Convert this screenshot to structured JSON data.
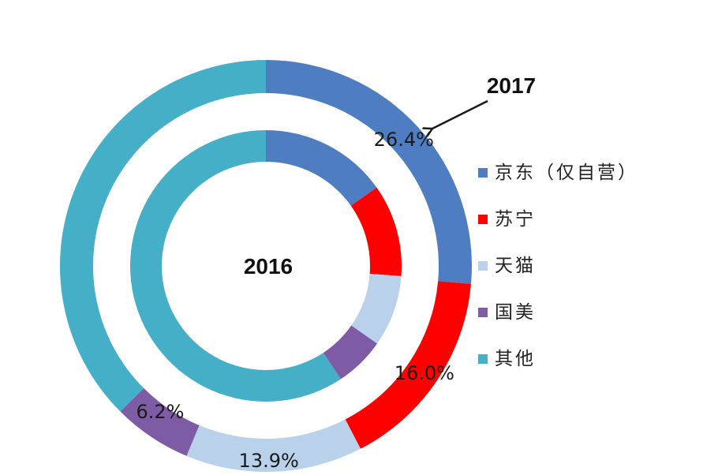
{
  "chart_data": {
    "type": "donut",
    "categories": [
      "京东（仅自营）",
      "苏宁",
      "天猫",
      "国美",
      "其他"
    ],
    "colors": [
      "#4E7EC1",
      "#FF0000",
      "#B9D1EA",
      "#7E5BA5",
      "#46AFC8"
    ],
    "series": [
      {
        "name": "2016",
        "values": [
          15.2,
          11.0,
          8.5,
          6.0,
          59.3
        ]
      },
      {
        "name": "2017",
        "values": [
          26.4,
          16.0,
          13.9,
          6.2,
          37.5
        ]
      }
    ],
    "data_labels": {
      "outer": [
        "26.4%",
        "16.0%",
        "13.9%",
        "6.2%",
        ""
      ]
    },
    "annotations": {
      "inner_year": "2016",
      "outer_year": "2017"
    },
    "legend": {
      "position": "right",
      "items": [
        "京东（仅自营）",
        "苏宁",
        "天猫",
        "国美",
        "其他"
      ]
    }
  }
}
